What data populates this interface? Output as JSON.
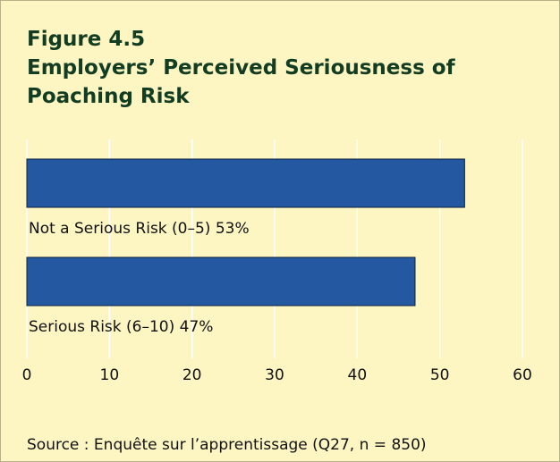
{
  "chart_data": {
    "type": "hbar",
    "figure_label": "Figure 4.5",
    "title": "Employers’ Perceived Seriousness of Poaching Risk",
    "categories": [
      "Not a Serious Risk (0–5)",
      "Serious Risk (6–10)"
    ],
    "values": [
      53,
      47
    ],
    "value_labels": [
      "53%",
      "47%"
    ],
    "color": "#2458a0",
    "xlim": [
      0,
      60
    ],
    "xticks": [
      0,
      10,
      20,
      30,
      40,
      50,
      60
    ],
    "grid": true,
    "source": "Source : Enquête sur l’apprentissage (Q27, n = 850)"
  }
}
